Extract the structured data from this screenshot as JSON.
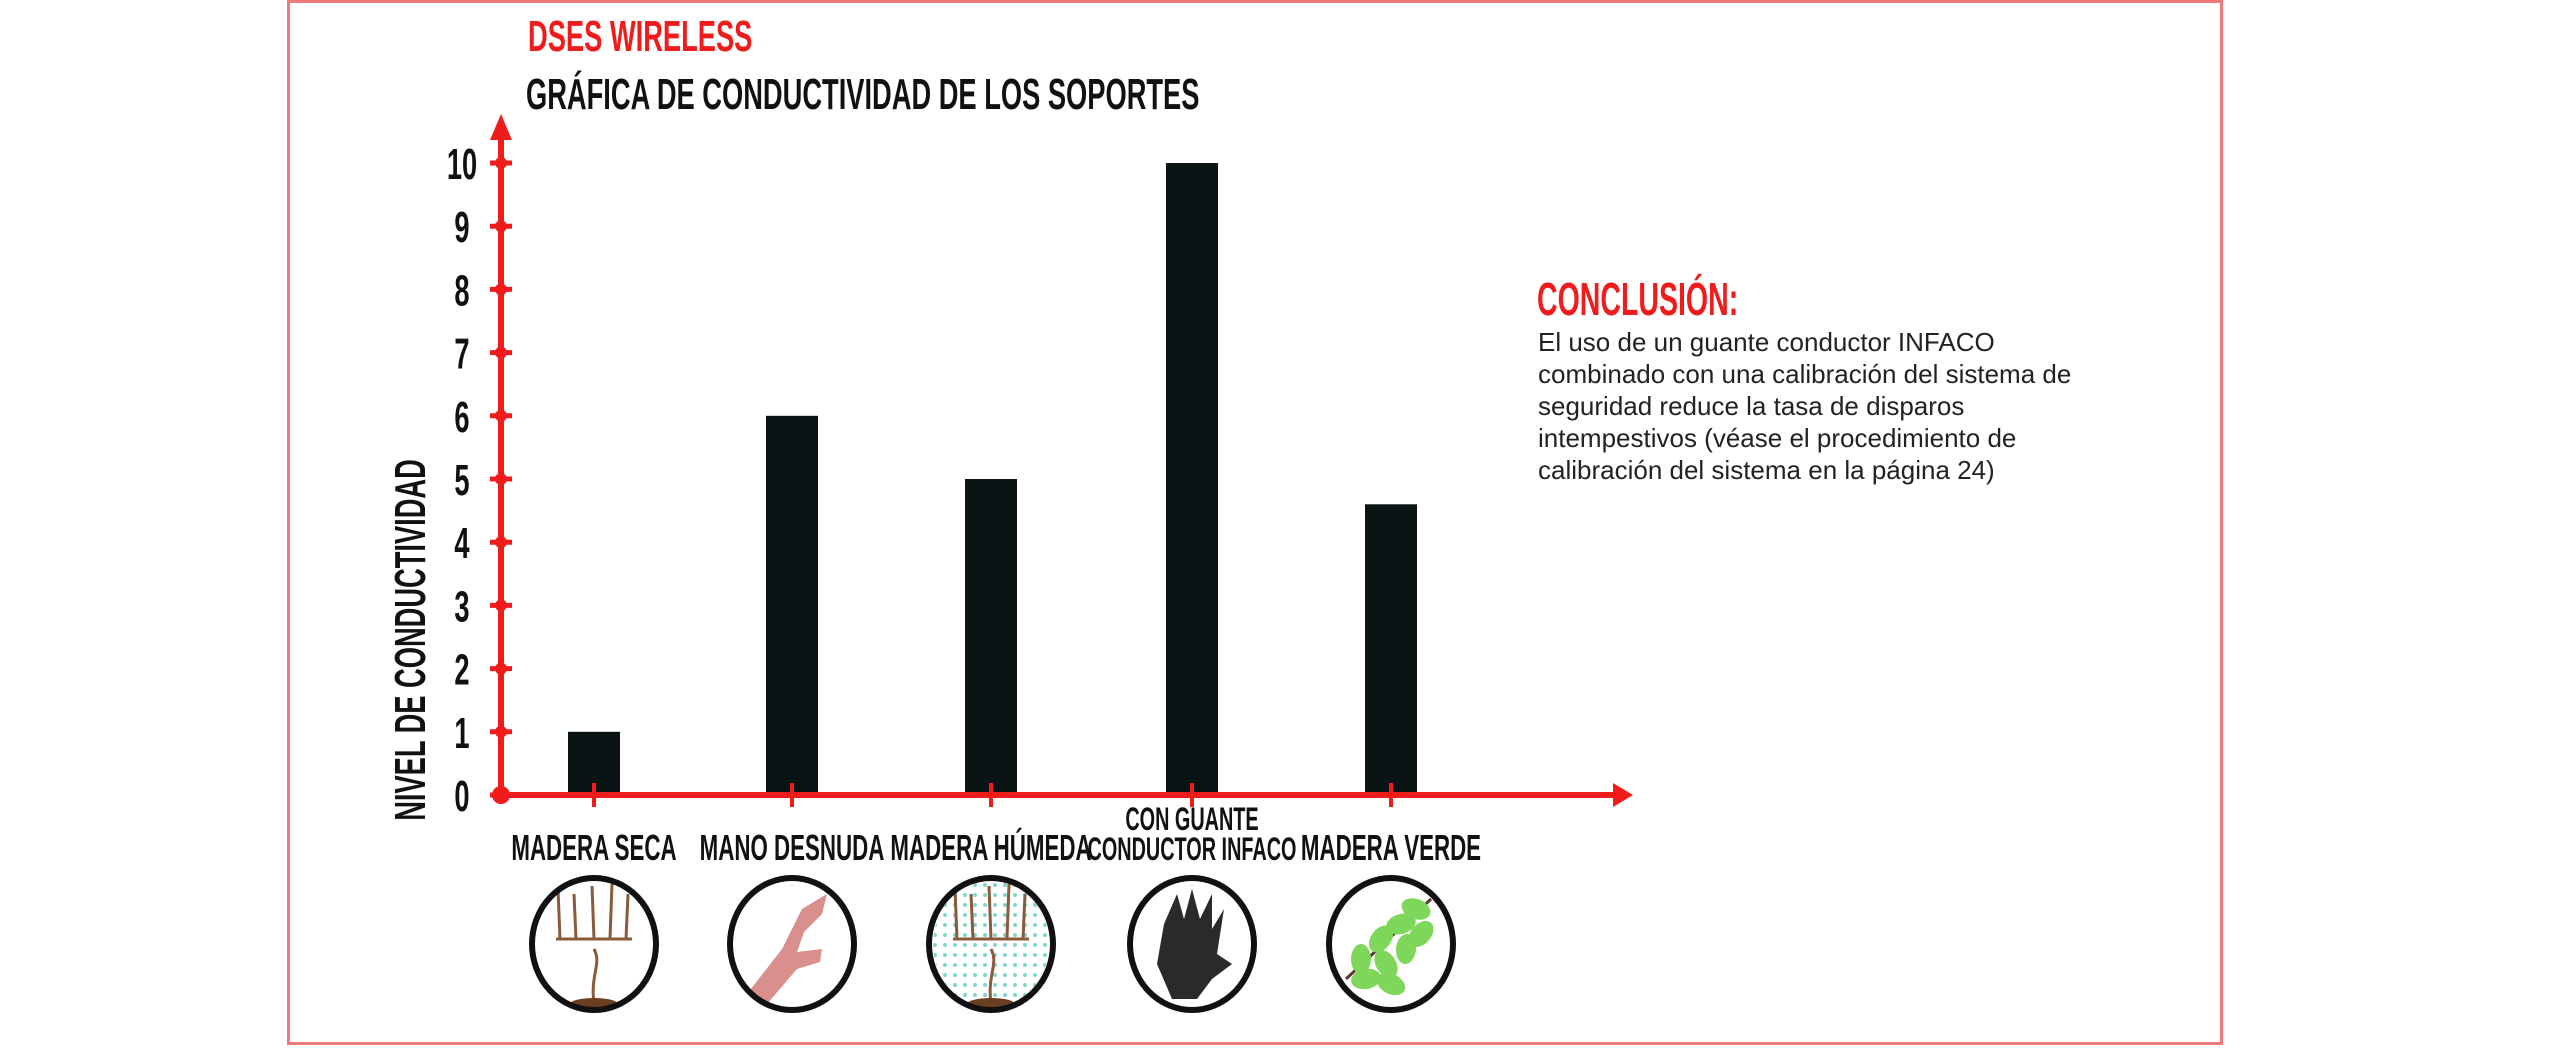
{
  "brand": "DSES WIRELESS",
  "conclusion": {
    "heading": "CONCLUSIÓN:",
    "text": "El uso de un guante conductor INFACO combinado con una calibración del sistema de seguridad reduce la tasa de disparos intempestivos (véase el procedimiento de calibración del sistema en la página 24)"
  },
  "colors": {
    "accent": "#f01c1c",
    "bar": "#0b1414",
    "frame": "#f07a7a"
  },
  "chart_data": {
    "type": "bar",
    "title": "GRÁFICA DE CONDUCTIVIDAD DE LOS SOPORTES",
    "xlabel": "",
    "ylabel": "NIVEL DE CONDUCTIVIDAD",
    "ylim": [
      0,
      10
    ],
    "yticks": [
      "0",
      "1",
      "2",
      "3",
      "4",
      "5",
      "6",
      "7",
      "8",
      "9",
      "10"
    ],
    "categories": [
      {
        "lines": [
          "MADERA SECA"
        ],
        "icon": "dry-vine-icon"
      },
      {
        "lines": [
          "MANO DESNUDA"
        ],
        "icon": "bare-hand-icon"
      },
      {
        "lines": [
          "MADERA HÚMEDA"
        ],
        "icon": "wet-vine-icon"
      },
      {
        "lines": [
          "CON GUANTE",
          "CONDUCTOR INFACO"
        ],
        "icon": "conductive-glove-icon"
      },
      {
        "lines": [
          "MADERA VERDE"
        ],
        "icon": "green-leaves-icon"
      }
    ],
    "values": [
      1,
      6,
      5,
      10,
      4.6
    ],
    "grid": false,
    "legend": "none"
  }
}
